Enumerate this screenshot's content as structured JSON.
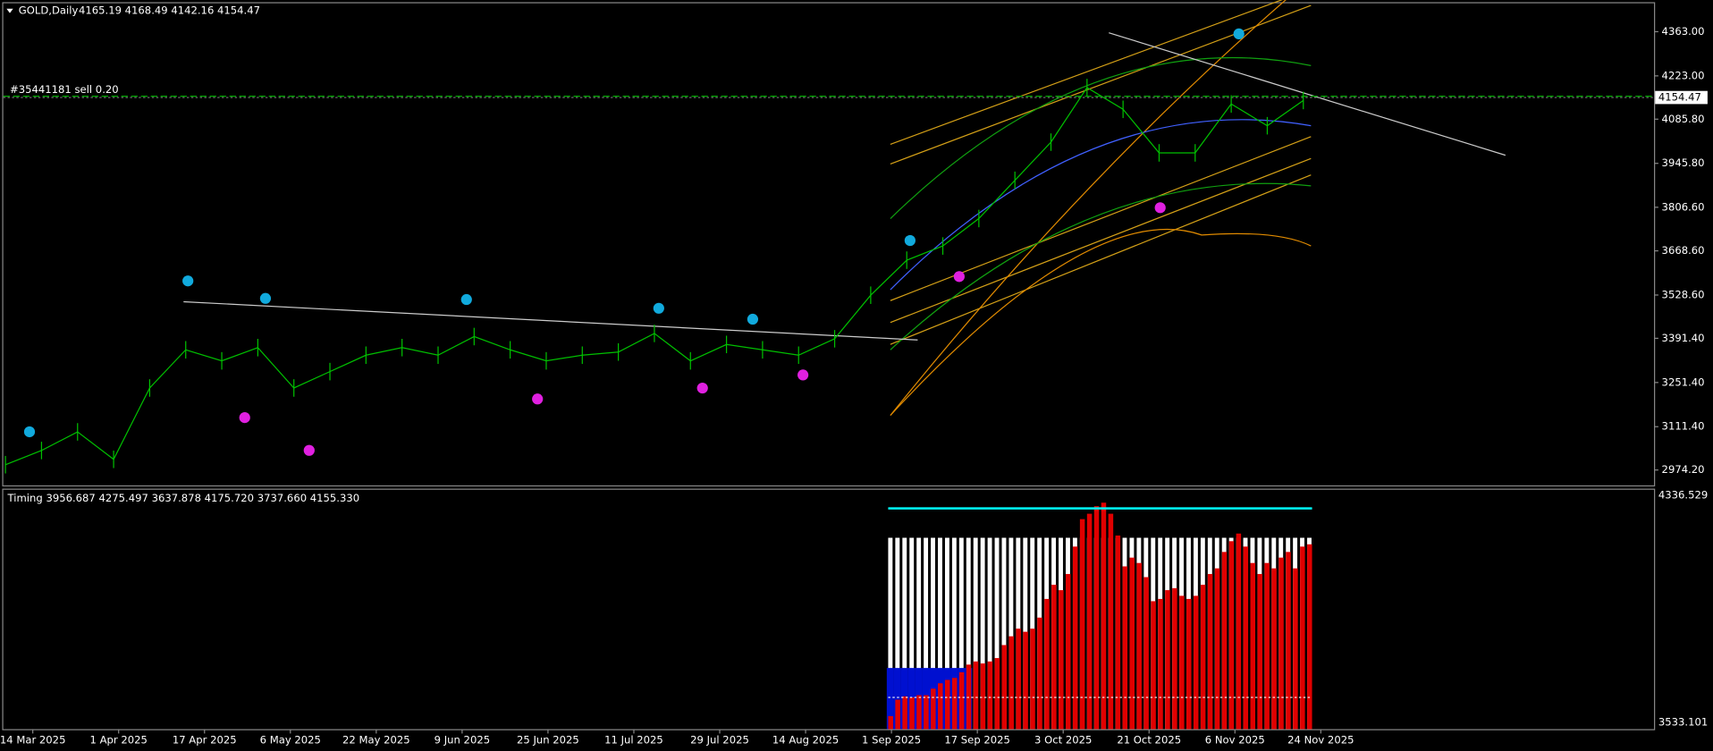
{
  "header": {
    "symbol": "GOLD,Daily",
    "ohlc": "4165.19 4168.49 4142.16 4154.47"
  },
  "order_label": "#35441181 sell 0.20",
  "chart_data": [
    {
      "type": "price",
      "closes": [
        2991,
        3036,
        3095,
        3008,
        3234,
        3355,
        3320,
        3362,
        3234,
        3286,
        3338,
        3362,
        3338,
        3397,
        3355,
        3320,
        3338,
        3348,
        3407,
        3320,
        3372,
        3355,
        3338,
        3390,
        3528,
        3639,
        3684,
        3771,
        3892,
        4013,
        4186,
        4117,
        3979,
        3979,
        4134,
        4065,
        4145
      ],
      "color": "#00c000",
      "last_price": {
        "value": 4154.47,
        "label": "4154.47"
      },
      "ylim": [
        2925.5,
        4453
      ],
      "yticks": [
        {
          "value": 4363,
          "label": "4363.00"
        },
        {
          "value": 4223,
          "label": "4223.00"
        },
        {
          "value": 4085.8,
          "label": "4085.80"
        },
        {
          "value": 3945.8,
          "label": "3945.80"
        },
        {
          "value": 3806.6,
          "label": "3806.60"
        },
        {
          "value": 3668.6,
          "label": "3668.60"
        },
        {
          "value": 3528.6,
          "label": "3528.60"
        },
        {
          "value": 3391.4,
          "label": "3391.40"
        },
        {
          "value": 3251.4,
          "label": "3251.40"
        },
        {
          "value": 3111.4,
          "label": "3111.40"
        },
        {
          "value": 2974.2,
          "label": "2974.20"
        }
      ]
    },
    {
      "type": "histogram",
      "title": "Timing 3956.687 4275.497 3637.878 4175.720 3737.660 4155.330",
      "values": [
        3556,
        3614,
        3626,
        3622,
        3630,
        3630,
        3653,
        3672,
        3684,
        3691,
        3711,
        3738,
        3749,
        3742,
        3749,
        3761,
        3807,
        3838,
        3865,
        3854,
        3865,
        3904,
        3970,
        4020,
        4001,
        4058,
        4155,
        4252,
        4271,
        4298,
        4310,
        4271,
        4194,
        4085,
        4116,
        4097,
        4047,
        3962,
        3970,
        4001,
        4008,
        3981,
        3970,
        3981,
        4020,
        4058,
        4078,
        4136,
        4174,
        4201,
        4155,
        4097,
        4058,
        4097,
        4078,
        4116,
        4136,
        4078,
        4155,
        4163
      ],
      "color": "#e00000",
      "blue_values": [
        3726,
        3726,
        3726,
        3726,
        3726,
        3726,
        3726,
        3726,
        3726,
        3726,
        3726,
        3726
      ],
      "white_level": 4186,
      "cyan_level": 4290,
      "dotted_level": 3622,
      "ylim": [
        3509.9,
        4355.8
      ],
      "yticks": [
        4336.529,
        3533.101
      ]
    }
  ],
  "date_labels": [
    "14 Mar 2025",
    "1 Apr 2025",
    "17 Apr 2025",
    "6 May 2025",
    "22 May 2025",
    "9 Jun 2025",
    "25 Jun 2025",
    "11 Jul 2025",
    "29 Jul 2025",
    "14 Aug 2025",
    "1 Sep 2025",
    "17 Sep 2025",
    "3 Oct 2025",
    "21 Oct 2025",
    "6 Nov 2025",
    "24 Nov 2025"
  ]
}
